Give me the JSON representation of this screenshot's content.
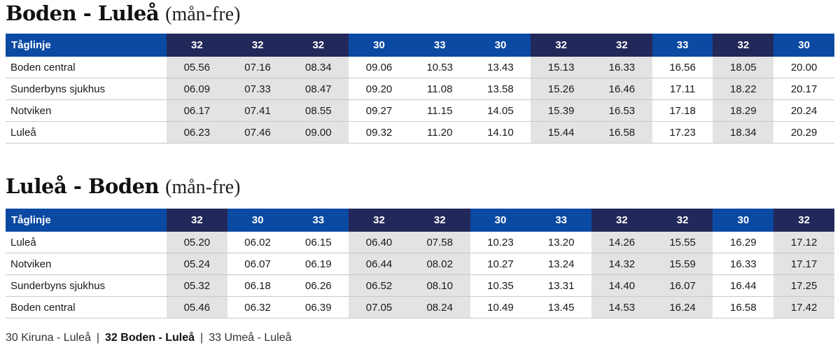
{
  "sections": [
    {
      "title_main": "Boden - Luleå",
      "title_sub": "(mån-fre)",
      "header_label": "Tåglinje",
      "trains": [
        "32",
        "32",
        "32",
        "30",
        "33",
        "30",
        "32",
        "32",
        "33",
        "32",
        "30"
      ],
      "rows": [
        {
          "station": "Boden central",
          "times": [
            "05.56",
            "07.16",
            "08.34",
            "09.06",
            "10.53",
            "13.43",
            "15.13",
            "16.33",
            "16.56",
            "18.05",
            "20.00"
          ]
        },
        {
          "station": "Sunderbyns sjukhus",
          "times": [
            "06.09",
            "07.33",
            "08.47",
            "09.20",
            "11.08",
            "13.58",
            "15.26",
            "16.46",
            "17.11",
            "18.22",
            "20.17"
          ]
        },
        {
          "station": "Notviken",
          "times": [
            "06.17",
            "07.41",
            "08.55",
            "09.27",
            "11.15",
            "14.05",
            "15.39",
            "16.53",
            "17.18",
            "18.29",
            "20.24"
          ]
        },
        {
          "station": "Luleå",
          "times": [
            "06.23",
            "07.46",
            "09.00",
            "09.32",
            "11.20",
            "14.10",
            "15.44",
            "16.58",
            "17.23",
            "18.34",
            "20.29"
          ]
        }
      ]
    },
    {
      "title_main": "Luleå - Boden",
      "title_sub": "(mån-fre)",
      "header_label": "Tåglinje",
      "trains": [
        "32",
        "30",
        "33",
        "32",
        "32",
        "30",
        "33",
        "32",
        "32",
        "30",
        "32"
      ],
      "rows": [
        {
          "station": "Luleå",
          "times": [
            "05.20",
            "06.02",
            "06.15",
            "06.40",
            "07.58",
            "10.23",
            "13.20",
            "14.26",
            "15.55",
            "16.29",
            "17.12"
          ]
        },
        {
          "station": "Notviken",
          "times": [
            "05.24",
            "06.07",
            "06.19",
            "06.44",
            "08.02",
            "10.27",
            "13.24",
            "14.32",
            "15.59",
            "16.33",
            "17.17"
          ]
        },
        {
          "station": "Sunderbyns sjukhus",
          "times": [
            "05.32",
            "06.18",
            "06.26",
            "06.52",
            "08.10",
            "10.35",
            "13.31",
            "14.40",
            "16.07",
            "16.44",
            "17.25"
          ]
        },
        {
          "station": "Boden central",
          "times": [
            "05.46",
            "06.32",
            "06.39",
            "07.05",
            "08.24",
            "10.49",
            "13.45",
            "14.53",
            "16.24",
            "16.58",
            "17.42"
          ]
        }
      ]
    }
  ],
  "legend": {
    "item30": "30 Kiruna - Luleå",
    "item32": "32 Boden - Luleå",
    "item33": "33 Umeå - Luleå",
    "separator": "|"
  },
  "colors": {
    "line32_header": "#23285a",
    "other_header": "#0b4aa2",
    "line32_cells": "#e3e3e3"
  }
}
